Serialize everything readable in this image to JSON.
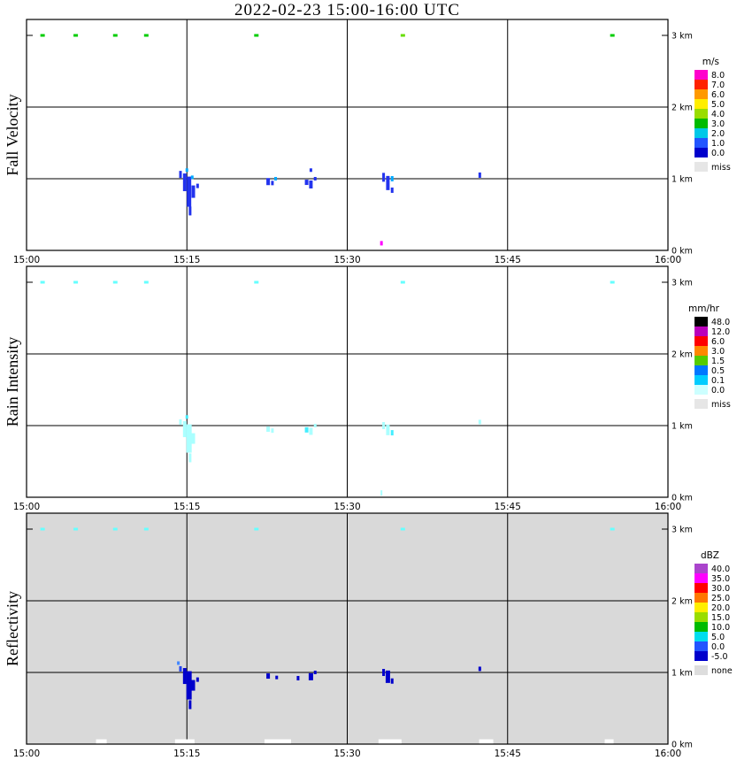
{
  "chart_data": {
    "type": "heatmap",
    "title": "2022-02-23  15:00-16:00 UTC",
    "x_axis": {
      "tick_labels": [
        "15:00",
        "15:15",
        "15:30",
        "15:45",
        "16:00"
      ],
      "tick_minutes": [
        0,
        15,
        30,
        45,
        60
      ],
      "range_minutes": [
        0,
        60
      ]
    },
    "y_axis": {
      "tick_labels": [
        "0 km",
        "1 km",
        "2 km",
        "3 km"
      ],
      "tick_km": [
        0,
        1,
        2,
        3
      ],
      "range_km": [
        0,
        3
      ]
    },
    "panels": [
      {
        "name": "fall-velocity",
        "ylabel": "Fall Velocity",
        "background": "#ffffff",
        "legend": {
          "title": "m/s",
          "entries": [
            {
              "label": "8.0",
              "color": "#ff00cc"
            },
            {
              "label": "7.0",
              "color": "#ff2200"
            },
            {
              "label": "6.0",
              "color": "#ff9900"
            },
            {
              "label": "5.0",
              "color": "#ffee00"
            },
            {
              "label": "4.0",
              "color": "#99dd00"
            },
            {
              "label": "3.0",
              "color": "#00bb00"
            },
            {
              "label": "2.0",
              "color": "#00c8e8"
            },
            {
              "label": "1.0",
              "color": "#2255ff"
            },
            {
              "label": "0.0",
              "color": "#0000cc"
            }
          ],
          "missing": {
            "label": "miss",
            "color": "#e6e6e6"
          }
        },
        "cells": [
          [
            1.5,
            3.0,
            "#00cc00",
            5,
            3
          ],
          [
            4.6,
            3.0,
            "#00cc00",
            5,
            3
          ],
          [
            8.3,
            3.0,
            "#00cc00",
            5,
            3
          ],
          [
            11.2,
            3.0,
            "#00cc00",
            5,
            3
          ],
          [
            21.5,
            3.0,
            "#00cc00",
            5,
            3
          ],
          [
            35.2,
            3.0,
            "#66dd00",
            5,
            3
          ],
          [
            54.8,
            3.0,
            "#00cc00",
            5,
            3
          ],
          [
            14.4,
            1.06,
            "#2233ee",
            3,
            8
          ],
          [
            14.8,
            0.95,
            "#2233ee",
            4,
            20
          ],
          [
            15.0,
            1.12,
            "#00aaff",
            3,
            4
          ],
          [
            15.2,
            0.82,
            "#2233ee",
            5,
            34
          ],
          [
            15.3,
            0.55,
            "#2233ee",
            3,
            10
          ],
          [
            15.6,
            0.82,
            "#2233ee",
            4,
            14
          ],
          [
            16.0,
            0.9,
            "#2233ee",
            3,
            5
          ],
          [
            15.5,
            1.02,
            "#00aaff",
            3,
            4
          ],
          [
            22.6,
            0.96,
            "#2233ee",
            4,
            8
          ],
          [
            23.0,
            0.94,
            "#2233ee",
            3,
            5
          ],
          [
            23.3,
            1.0,
            "#00aaff",
            3,
            4
          ],
          [
            26.2,
            0.95,
            "#2233ee",
            4,
            6
          ],
          [
            26.6,
            0.92,
            "#2233ee",
            4,
            9
          ],
          [
            26.6,
            1.12,
            "#2233ee",
            3,
            4
          ],
          [
            27.0,
            1.0,
            "#2233ee",
            3,
            4
          ],
          [
            33.4,
            1.02,
            "#2233ee",
            3,
            10
          ],
          [
            33.8,
            0.94,
            "#2233ee",
            4,
            16
          ],
          [
            34.2,
            1.0,
            "#00aaff",
            3,
            6
          ],
          [
            34.2,
            0.84,
            "#2233ee",
            3,
            6
          ],
          [
            42.4,
            1.05,
            "#2233ee",
            3,
            6
          ],
          [
            33.2,
            0.1,
            "#ff00ff",
            3,
            5
          ]
        ]
      },
      {
        "name": "rain-intensity",
        "ylabel": "Rain Intensity",
        "background": "#ffffff",
        "legend": {
          "title": "mm/hr",
          "entries": [
            {
              "label": "48.0",
              "color": "#000000"
            },
            {
              "label": "12.0",
              "color": "#bb00bb"
            },
            {
              "label": "6.0",
              "color": "#ff0000"
            },
            {
              "label": "3.0",
              "color": "#ff8800"
            },
            {
              "label": "1.5",
              "color": "#55cc00"
            },
            {
              "label": "0.5",
              "color": "#0077ff"
            },
            {
              "label": "0.1",
              "color": "#00ccff"
            },
            {
              "label": "0.0",
              "color": "#ccffff"
            }
          ],
          "missing": {
            "label": "miss",
            "color": "#e6e6e6"
          }
        },
        "cells": [
          [
            1.5,
            3.0,
            "#66ffff",
            5,
            3
          ],
          [
            4.6,
            3.0,
            "#66ffff",
            5,
            3
          ],
          [
            8.3,
            3.0,
            "#66ffff",
            5,
            3
          ],
          [
            11.2,
            3.0,
            "#66ffff",
            5,
            3
          ],
          [
            21.5,
            3.0,
            "#66ffff",
            5,
            3
          ],
          [
            35.2,
            3.0,
            "#66ffff",
            5,
            3
          ],
          [
            54.8,
            3.0,
            "#66ffff",
            5,
            3
          ],
          [
            14.4,
            1.05,
            "#aaffff",
            3,
            6
          ],
          [
            14.8,
            0.95,
            "#aaffff",
            4,
            18
          ],
          [
            15.2,
            0.82,
            "#aaffff",
            6,
            32
          ],
          [
            15.3,
            0.55,
            "#aaffff",
            3,
            10
          ],
          [
            15.6,
            0.82,
            "#aaffff",
            4,
            12
          ],
          [
            15.0,
            1.12,
            "#44eeff",
            3,
            4
          ],
          [
            22.6,
            0.95,
            "#aaffff",
            4,
            6
          ],
          [
            23.0,
            0.93,
            "#aaffff",
            3,
            5
          ],
          [
            26.2,
            0.94,
            "#44eeff",
            4,
            6
          ],
          [
            26.6,
            0.92,
            "#aaffff",
            4,
            8
          ],
          [
            27.0,
            1.0,
            "#aaffff",
            3,
            4
          ],
          [
            33.4,
            1.0,
            "#aaffff",
            3,
            8
          ],
          [
            33.8,
            0.94,
            "#aaffff",
            4,
            12
          ],
          [
            34.2,
            0.9,
            "#44eeff",
            3,
            6
          ],
          [
            42.4,
            1.05,
            "#aaffff",
            3,
            5
          ],
          [
            33.2,
            0.06,
            "#aaffff",
            2,
            6
          ]
        ]
      },
      {
        "name": "reflectivity",
        "ylabel": "Reflectivity",
        "background": "#d9d9d9",
        "legend": {
          "title": "dBZ",
          "entries": [
            {
              "label": "40.0",
              "color": "#aa44cc"
            },
            {
              "label": "35.0",
              "color": "#ff00ff"
            },
            {
              "label": "30.0",
              "color": "#ff0000"
            },
            {
              "label": "25.0",
              "color": "#ff7700"
            },
            {
              "label": "20.0",
              "color": "#ffee00"
            },
            {
              "label": "15.0",
              "color": "#99dd00"
            },
            {
              "label": "10.0",
              "color": "#00bb00"
            },
            {
              "label": "5.0",
              "color": "#00ddee"
            },
            {
              "label": "0.0",
              "color": "#2255ff"
            },
            {
              "label": "-5.0",
              "color": "#0000cc"
            }
          ],
          "missing": {
            "label": "none",
            "color": "#dddddd"
          }
        },
        "cells": [
          [
            1.5,
            3.0,
            "#66ffff",
            5,
            3
          ],
          [
            4.6,
            3.0,
            "#66ffff",
            5,
            3
          ],
          [
            8.3,
            3.0,
            "#66ffff",
            5,
            3
          ],
          [
            11.2,
            3.0,
            "#66ffff",
            5,
            3
          ],
          [
            21.5,
            3.0,
            "#66ffff",
            5,
            3
          ],
          [
            35.2,
            3.0,
            "#66ffff",
            5,
            3
          ],
          [
            54.8,
            3.0,
            "#66ffff",
            5,
            3
          ],
          [
            14.2,
            1.13,
            "#4488ff",
            3,
            4
          ],
          [
            14.4,
            1.05,
            "#2244ee",
            3,
            6
          ],
          [
            14.8,
            0.95,
            "#0000cc",
            4,
            18
          ],
          [
            15.2,
            0.82,
            "#0000cc",
            6,
            32
          ],
          [
            15.3,
            0.55,
            "#0000cc",
            3,
            10
          ],
          [
            15.6,
            0.82,
            "#0000cc",
            4,
            12
          ],
          [
            16.0,
            0.9,
            "#0000cc",
            3,
            5
          ],
          [
            22.6,
            0.95,
            "#0000cc",
            4,
            6
          ],
          [
            23.4,
            0.93,
            "#0000cc",
            3,
            4
          ],
          [
            25.4,
            0.92,
            "#0000cc",
            3,
            5
          ],
          [
            26.6,
            0.94,
            "#0000cc",
            5,
            8
          ],
          [
            27.0,
            1.0,
            "#0000cc",
            3,
            4
          ],
          [
            33.4,
            1.0,
            "#0000cc",
            3,
            8
          ],
          [
            33.8,
            0.94,
            "#0000cc",
            5,
            14
          ],
          [
            34.2,
            0.88,
            "#0000cc",
            3,
            6
          ],
          [
            42.4,
            1.05,
            "#0000cc",
            3,
            5
          ],
          [
            7.0,
            0.03,
            "#ffffff",
            12,
            6
          ],
          [
            14.8,
            0.03,
            "#ffffff",
            22,
            6
          ],
          [
            23.5,
            0.03,
            "#ffffff",
            30,
            6
          ],
          [
            34.0,
            0.03,
            "#ffffff",
            26,
            6
          ],
          [
            43.0,
            0.03,
            "#ffffff",
            16,
            6
          ],
          [
            54.5,
            0.03,
            "#ffffff",
            10,
            6
          ]
        ]
      }
    ]
  }
}
